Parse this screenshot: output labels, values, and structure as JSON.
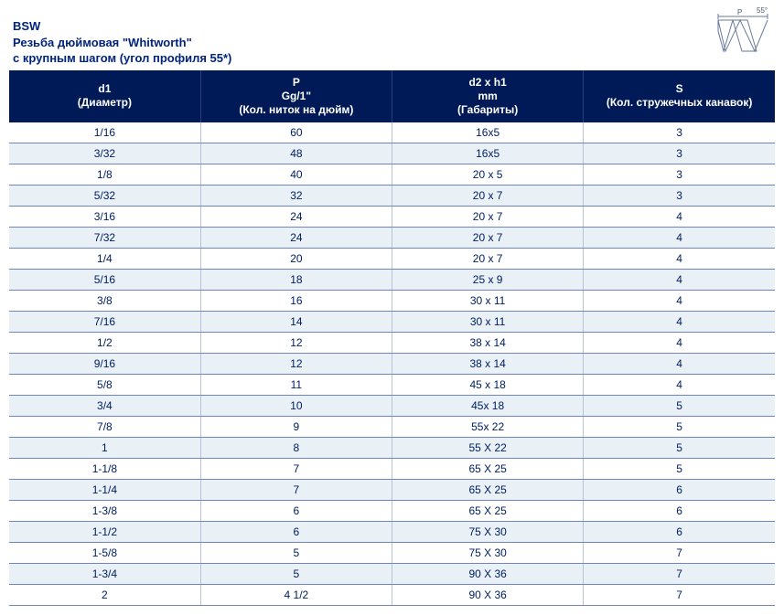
{
  "diagram": {
    "angle_label": "55°",
    "p_label": "P"
  },
  "title": {
    "line1": "BSW",
    "line2": "Резьба дюймовая \"Whitworth\"",
    "line3": "с крупным шагом (угол профиля 55*)"
  },
  "table": {
    "header_bg": "#001a57",
    "header_fg": "#ffffff",
    "row_even_bg": "#e9f0f6",
    "row_odd_bg": "#ffffff",
    "cell_fg": "#002060",
    "border_color": "#6f86b3",
    "font_size_header": 12,
    "font_size_cell": 12,
    "columns": [
      {
        "l1": "d1",
        "l2": "(Диаметр)"
      },
      {
        "l1": "P",
        "l2": "Gg/1\"",
        "l3": "(Кол. ниток на дюйм)"
      },
      {
        "l1": "d2 x h1",
        "l2": "mm",
        "l3": "(Габариты)"
      },
      {
        "l1": "S",
        "l2": "(Кол. стружечных канавок)"
      }
    ],
    "rows": [
      [
        "1/16",
        "60",
        "16x5",
        "3"
      ],
      [
        "3/32",
        "48",
        "16x5",
        "3"
      ],
      [
        "1/8",
        "40",
        "20 x 5",
        "3"
      ],
      [
        "5/32",
        "32",
        "20 x 7",
        "3"
      ],
      [
        "3/16",
        "24",
        "20 x 7",
        "4"
      ],
      [
        "7/32",
        "24",
        "20 x 7",
        "4"
      ],
      [
        "1/4",
        "20",
        "20 x 7",
        "4"
      ],
      [
        "5/16",
        "18",
        "25 x 9",
        "4"
      ],
      [
        "3/8",
        "16",
        "30 x 11",
        "4"
      ],
      [
        "7/16",
        "14",
        "30 x 11",
        "4"
      ],
      [
        "1/2",
        "12",
        "38 x 14",
        "4"
      ],
      [
        "9/16",
        "12",
        "38 x 14",
        "4"
      ],
      [
        "5/8",
        "11",
        "45 x 18",
        "4"
      ],
      [
        "3/4",
        "10",
        "45x 18",
        "5"
      ],
      [
        "7/8",
        "9",
        "55x 22",
        "5"
      ],
      [
        "1",
        "8",
        "55 X 22",
        "5"
      ],
      [
        "1-1/8",
        "7",
        "65 X 25",
        "5"
      ],
      [
        "1-1/4",
        "7",
        "65 X 25",
        "6"
      ],
      [
        "1-3/8",
        "6",
        "65 X 25",
        "6"
      ],
      [
        "1-1/2",
        "6",
        "75 X 30",
        "6"
      ],
      [
        "1-5/8",
        "5",
        "75 X 30",
        "7"
      ],
      [
        "1-3/4",
        "5",
        "90 X 36",
        "7"
      ],
      [
        "2",
        "4 1/2",
        "90 X 36",
        "7"
      ]
    ]
  }
}
